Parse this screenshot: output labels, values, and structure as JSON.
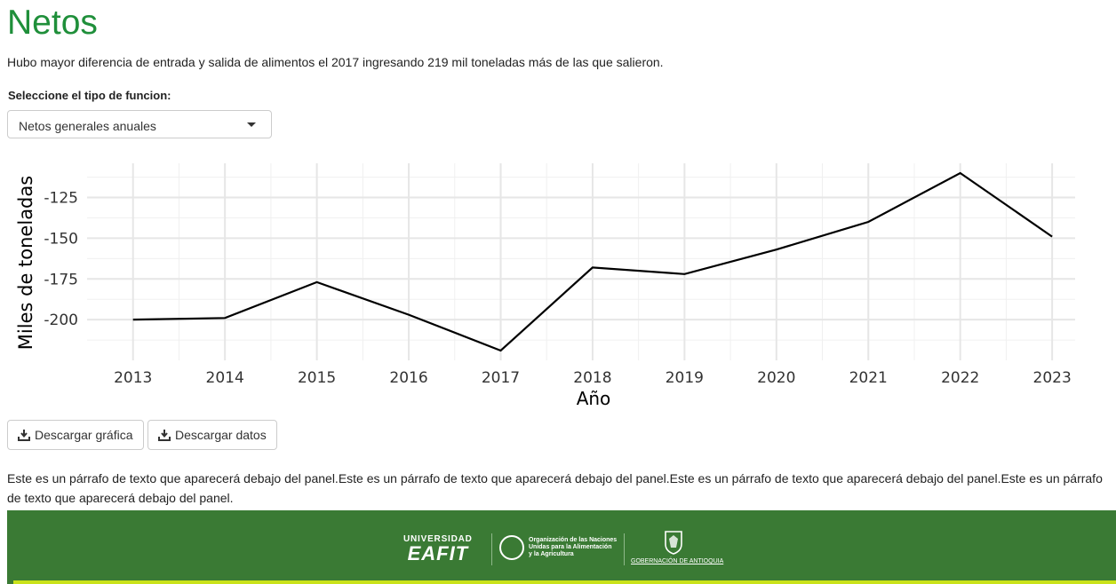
{
  "page": {
    "title": "Netos",
    "subtitle": "Hubo mayor diferencia de entrada y salida de alimentos el 2017 ingresando 219 mil toneladas más de las que salieron."
  },
  "selector": {
    "label": "Seleccione el tipo de funcion:",
    "value": "Netos generales anuales"
  },
  "buttons": {
    "download_chart": "Descargar gráfica",
    "download_data": "Descargar datos"
  },
  "paragraph": "Este es un párrafo de texto que aparecerá debajo del panel.Este es un párrafo de texto que aparecerá debajo del panel.Este es un párrafo de texto que aparecerá debajo del panel.Este es un párrafo de texto que aparecerá debajo del panel.",
  "footer": {
    "eafit_top": "UNIVERSIDAD",
    "eafit_name": "EAFIT",
    "fao_text_lines": [
      "Organización de las Naciones",
      "Unidas para la Alimentación",
      "y la Agricultura"
    ],
    "gob_text": "GOBERNACIÓN DE ANTIOQUIA"
  },
  "colors": {
    "title_green": "#1f8f3a",
    "footer_green": "#3a7a34",
    "footer_stripe": "#c9e21a"
  },
  "chart_data": {
    "type": "line",
    "x": [
      2013,
      2014,
      2015,
      2016,
      2017,
      2018,
      2019,
      2020,
      2021,
      2022,
      2023
    ],
    "series": [
      {
        "values": [
          -200,
          -199,
          -177,
          -197,
          -219,
          -168,
          -172,
          -157,
          -140,
          -110,
          -149
        ]
      }
    ],
    "xlabel": "Año",
    "ylabel": "Miles de toneladas",
    "yticks": [
      -125,
      -150,
      -175,
      -200
    ],
    "ylim": [
      -225,
      -104
    ],
    "grid": true
  }
}
